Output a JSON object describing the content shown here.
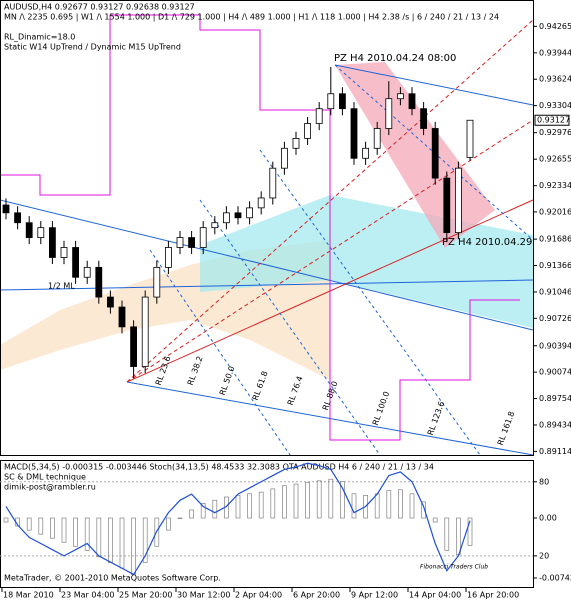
{
  "chart_data": [
    {
      "type": "candlestick",
      "title": "AUDUSD,H4  0.92677 0.93127 0.92638 0.93127",
      "subtitle": [
        "MN /\\ 2235   0.695 | W1 /\\ 1554   1.000 | D1 /\\ 729   1.000 | H4 /\\ 489   1.000 | H1 /\\ 118   1.000 | H4   2.38 /s | 6 / 240 / 21 / 13 / 24",
        "RL_Dinamic=18.0",
        "Static  W14  UpTrend  /  Dynamic  M15  UpTrend"
      ],
      "categories": [
        "18 Mar 2010",
        null,
        null,
        null,
        null,
        "23 Mar 04:00",
        null,
        null,
        null,
        null,
        "25 Mar 20:00",
        null,
        null,
        null,
        null,
        "30 Mar 12:00",
        null,
        null,
        null,
        null,
        "2 Apr 04:00",
        null,
        null,
        null,
        null,
        "6 Apr 20:00",
        null,
        null,
        null,
        null,
        "9 Apr 12:00",
        null,
        null,
        null,
        null,
        "14 Apr 04:00",
        null,
        null,
        null,
        null,
        "16 Apr 20:00"
      ],
      "open": [
        0.921,
        0.92005,
        0.91885,
        0.91705,
        0.91825,
        0.91464,
        0.91585,
        0.91224,
        0.91344,
        0.90984,
        0.90863,
        0.90623,
        0.90142,
        0.90984,
        0.91344,
        0.91585,
        0.91705,
        0.91585,
        0.91825,
        0.91885,
        0.92005,
        0.91945,
        0.92065,
        0.92185,
        0.92546,
        0.92787,
        0.92907,
        0.93087,
        0.93267,
        0.93448,
        0.93267,
        0.92666,
        0.92787,
        0.93027,
        0.93388,
        0.93448,
        0.93267,
        0.93027,
        0.92426,
        0.91765,
        0.92677
      ],
      "high": [
        0.9218,
        0.92085,
        0.91965,
        0.91905,
        0.91905,
        0.91665,
        0.91665,
        0.91424,
        0.91424,
        0.91064,
        0.90943,
        0.90703,
        0.91064,
        0.91424,
        0.91665,
        0.91785,
        0.91785,
        0.91905,
        0.91965,
        0.92085,
        0.92085,
        0.92145,
        0.92265,
        0.92626,
        0.92867,
        0.92987,
        0.93167,
        0.93347,
        0.93772,
        0.93528,
        0.93347,
        0.92867,
        0.93107,
        0.936,
        0.93528,
        0.93528,
        0.93347,
        0.93107,
        0.92506,
        0.92626,
        0.93127
      ],
      "low": [
        0.91925,
        0.91805,
        0.91625,
        0.91625,
        0.91384,
        0.91384,
        0.91144,
        0.91144,
        0.90904,
        0.90783,
        0.90543,
        0.9,
        0.90062,
        0.90904,
        0.91264,
        0.91505,
        0.91505,
        0.91505,
        0.91745,
        0.91805,
        0.91865,
        0.91865,
        0.91985,
        0.92105,
        0.92466,
        0.92707,
        0.92827,
        0.93007,
        0.93187,
        0.93187,
        0.92586,
        0.92586,
        0.92707,
        0.92947,
        0.93308,
        0.93187,
        0.92947,
        0.92346,
        0.9165,
        0.91685,
        0.92638
      ],
      "close": [
        0.92005,
        0.91885,
        0.91705,
        0.91825,
        0.91464,
        0.91585,
        0.91224,
        0.91344,
        0.90984,
        0.90863,
        0.90623,
        0.90142,
        0.90984,
        0.91344,
        0.91585,
        0.91705,
        0.91585,
        0.91825,
        0.91885,
        0.92005,
        0.91945,
        0.92065,
        0.92185,
        0.92546,
        0.92787,
        0.92907,
        0.93087,
        0.93267,
        0.93448,
        0.93267,
        0.92666,
        0.92787,
        0.93027,
        0.93388,
        0.93448,
        0.93267,
        0.93027,
        0.92426,
        0.91765,
        0.92546,
        0.93127
      ],
      "ylim": [
        0.8907,
        0.9456
      ],
      "yticks": [
        0.94265,
        0.93944,
        0.93624,
        0.93304,
        0.92976,
        0.92655,
        0.92334,
        0.92016,
        0.91686,
        0.91366,
        0.91046,
        0.90726,
        0.90394,
        0.90074,
        0.89754,
        0.89434,
        0.89114
      ],
      "annotations": [
        "PZ H4  2010.04.24 08:00",
        "PZ H4  2010.04.29",
        "1/2 ML",
        "RL 23.6",
        "RL 38.2",
        "RL 50.0",
        "RL 61.8",
        "RL 76.4",
        "RL 88.0",
        "RL 100.0",
        "RL 123.6",
        "RL 161.8"
      ]
    },
    {
      "type": "macd-stoch",
      "title": "MACD(5,34,5) -0.000315 -0.003446  Stoch(34,13,5) 48.4533 32.3083  QTA AUDUSD H4  6 / 240 / 21 / 13 / 34",
      "series": [
        {
          "color": "#808080",
          "axis": "y2",
          "values": [
            -0.0005,
            -0.001,
            -0.0015,
            -0.002,
            -0.0025,
            -0.003,
            -0.0035,
            -0.004,
            -0.0048,
            -0.0055,
            -0.0062,
            -0.007,
            -0.0055,
            -0.0035,
            -0.0015,
            0.0,
            0.001,
            0.0018,
            0.0022,
            0.0026,
            0.0028,
            0.003,
            0.0032,
            0.0036,
            0.004,
            0.0042,
            0.0044,
            0.0046,
            0.0048,
            0.0045,
            0.003,
            0.0028,
            0.003,
            0.0034,
            0.0035,
            0.003,
            0.002,
            -0.0005,
            -0.004,
            -0.0045,
            -0.0034
          ]
        },
        {
          "color": "#1e4fd8",
          "values": [
            60,
            45,
            35,
            30,
            25,
            20,
            25,
            30,
            20,
            15,
            10,
            5,
            20,
            40,
            55,
            65,
            70,
            60,
            55,
            60,
            70,
            75,
            80,
            85,
            90,
            92,
            95,
            93,
            90,
            75,
            55,
            60,
            70,
            85,
            88,
            80,
            60,
            30,
            8,
            20,
            48.45
          ]
        }
      ],
      "ylim": [
        -6,
        96
      ],
      "yticks": [
        80,
        20
      ],
      "y2lim": [
        -0.00866,
        0.00693
      ],
      "y2ticks": [
        {
          "value": 0,
          "label": "0.00"
        },
        -0.00742
      ],
      "annotations": [
        "SC & DML technique",
        "dimik-post@rambler.ru",
        "Fibonacci Traders Club",
        "MetaTrader, © 2001-2010 MetaQuotes Software Corp."
      ]
    }
  ]
}
